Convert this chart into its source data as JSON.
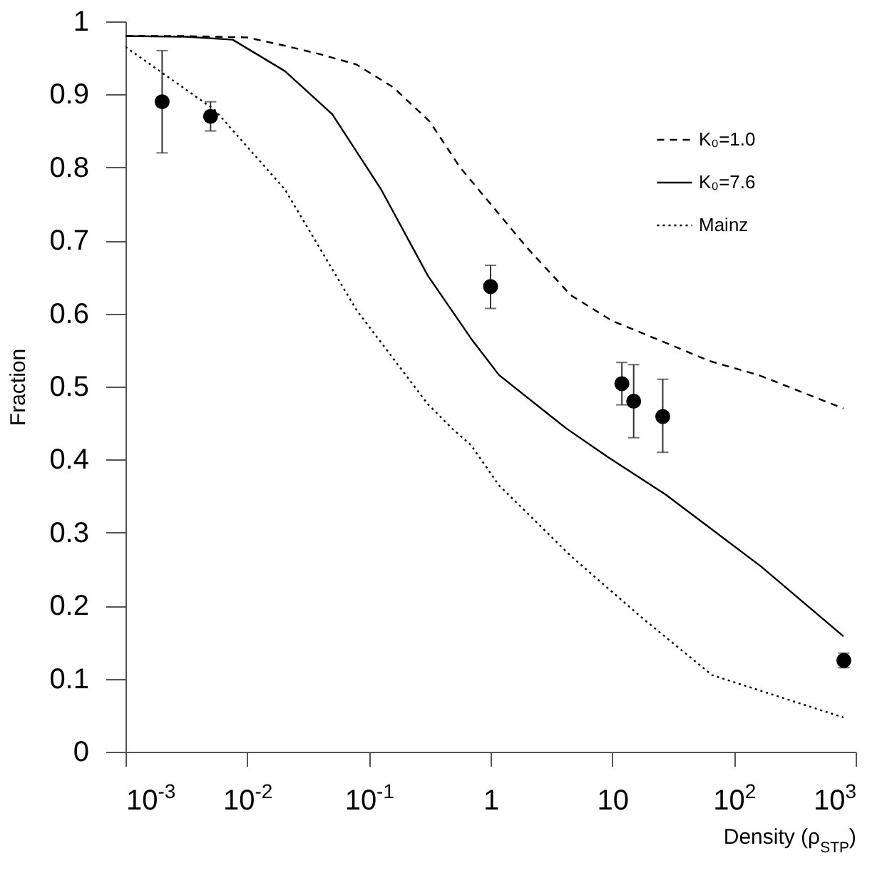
{
  "chart_data": {
    "type": "line",
    "xlabel": "Density (ρ$_{STP}$)",
    "ylabel": "Fraction",
    "xlim": [
      0.001,
      1000
    ],
    "ylim": [
      0,
      1
    ],
    "xticks": [
      {
        "value": 0.001,
        "label": "10$^{-3}$"
      },
      {
        "value": 0.01,
        "label": "10$^{-2}$"
      },
      {
        "value": 0.1,
        "label": "10$^{-1}$"
      },
      1,
      10,
      {
        "value": 100,
        "label": "10$^{2}$"
      },
      {
        "value": 1000,
        "label": "10$^{3}$"
      }
    ],
    "yticks": [
      0,
      0.1,
      0.2,
      0.3,
      0.4,
      0.5,
      0.6,
      0.7,
      0.8,
      0.9,
      1
    ],
    "log": "x",
    "grid": false,
    "legend": "top right",
    "series": [
      {
        "name": "K₀=1.0",
        "color": "#000000",
        "line_style": "dashed",
        "x": [
          0.001,
          0.00316,
          0.01,
          0.02,
          0.04,
          0.079,
          0.158,
          0.316,
          0.562,
          1,
          2,
          4.57,
          10,
          27.5,
          63,
          158,
          794
        ],
        "values": [
          0.98,
          0.98,
          0.978,
          0.967,
          0.955,
          0.941,
          0.91,
          0.863,
          0.8,
          0.75,
          0.69,
          0.625,
          0.59,
          0.56,
          0.535,
          0.516,
          0.47
        ]
      },
      {
        "name": "K₀=7.6",
        "color": "#000000",
        "line_style": "solid",
        "x": [
          0.001,
          0.00316,
          0.0076,
          0.0204,
          0.05,
          0.126,
          0.305,
          0.69,
          1.17,
          4.17,
          9.1,
          27.5,
          166,
          794
        ],
        "values": [
          0.98,
          0.979,
          0.975,
          0.932,
          0.873,
          0.77,
          0.652,
          0.566,
          0.516,
          0.443,
          0.404,
          0.352,
          0.254,
          0.158
        ]
      },
      {
        "name": "Mainz",
        "color": "#000000",
        "line_style": "dotted",
        "x": [
          0.001,
          0.0054,
          0.0204,
          0.079,
          0.305,
          0.48,
          0.69,
          1.17,
          4.57,
          17.4,
          66,
          794
        ],
        "values": [
          0.965,
          0.879,
          0.77,
          0.605,
          0.476,
          0.443,
          0.42,
          0.365,
          0.268,
          0.184,
          0.105,
          0.047
        ]
      },
      {
        "color": "#000000",
        "type": "scatter",
        "marker": "circle",
        "x": [
          0.002,
          0.005,
          1,
          12,
          15,
          26,
          800
        ],
        "values": [
          0.89,
          0.87,
          0.637,
          0.504,
          0.48,
          0.459,
          0.125
        ],
        "errors": [
          [
            0.82,
            0.96
          ],
          [
            0.85,
            0.89
          ],
          [
            0.607,
            0.666
          ],
          [
            0.475,
            0.533
          ],
          [
            0.43,
            0.53
          ],
          [
            0.41,
            0.51
          ],
          [
            0.115,
            0.135
          ]
        ]
      }
    ]
  }
}
